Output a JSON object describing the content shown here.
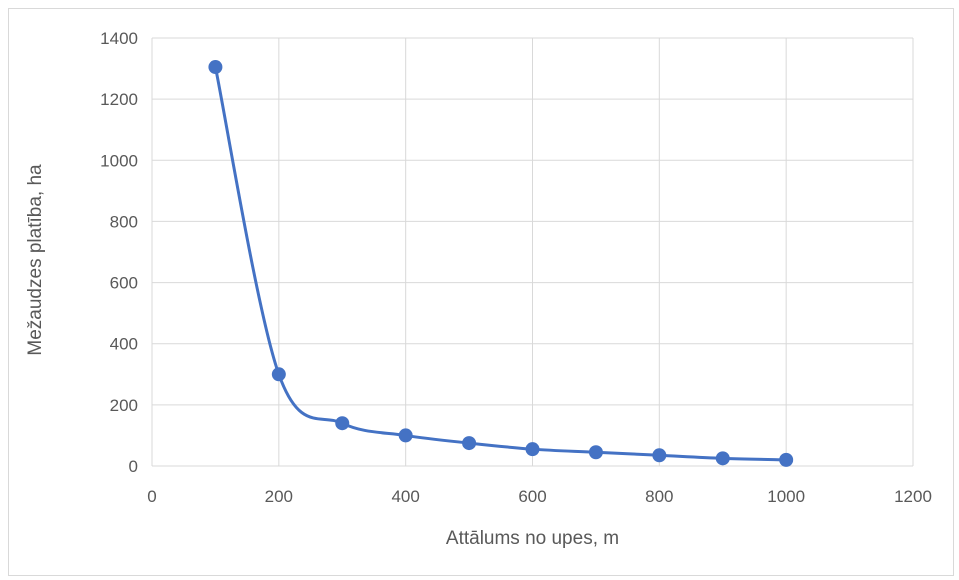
{
  "chart_data": {
    "type": "scatter",
    "title": "",
    "xlabel": "Attālums no upes, m",
    "ylabel": "Mežaudzes platība, ha",
    "xlim": [
      0,
      1200
    ],
    "ylim": [
      0,
      1400
    ],
    "x_ticks": [
      0,
      200,
      400,
      600,
      800,
      1000,
      1200
    ],
    "y_ticks": [
      0,
      200,
      400,
      600,
      800,
      1000,
      1200,
      1400
    ],
    "grid": true,
    "smooth_line": true,
    "color": "#4472c4",
    "series": [
      {
        "x": [
          100,
          200,
          300,
          400,
          500,
          600,
          700,
          800,
          900,
          1000
        ],
        "y": [
          1305,
          300,
          140,
          100,
          75,
          55,
          45,
          35,
          25,
          20
        ]
      }
    ]
  }
}
